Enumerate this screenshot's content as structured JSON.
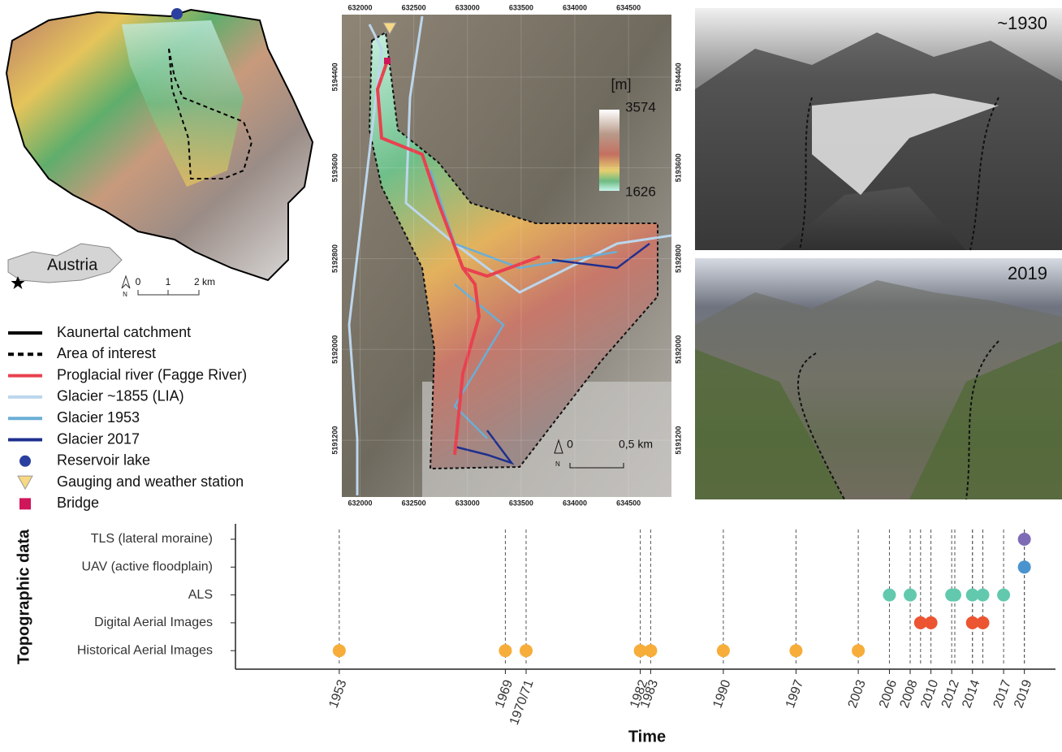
{
  "chart_data": {
    "type": "timeline",
    "y_label": "Topographic data",
    "x_label": "Time",
    "series": [
      {
        "name": "TLS (lateral moraine)",
        "color": "#7e6bb5",
        "x": [
          2019
        ]
      },
      {
        "name": "UAV (active floodplain)",
        "color": "#4a93cf",
        "x": [
          2019
        ]
      },
      {
        "name": "ALS",
        "color": "#62c9ae",
        "x": [
          2006,
          2008,
          2012,
          2012.3,
          2014,
          2015,
          2017
        ]
      },
      {
        "name": "Digital Aerial Images",
        "color": "#ec5432",
        "x": [
          2009,
          2010,
          2014,
          2015
        ]
      },
      {
        "name": "Historical Aerial Images",
        "color": "#f6ad3a",
        "x": [
          1953,
          1969,
          1971,
          1982,
          1983,
          1990,
          1997,
          2003
        ]
      }
    ],
    "xlim": [
      1943,
      2022
    ],
    "xticks": [
      1953,
      1969,
      {
        "value": 1971,
        "label": "1970/71"
      },
      1982,
      1983,
      1990,
      1997,
      2003,
      2006,
      2008,
      2010,
      2012,
      2014,
      2017,
      2019
    ]
  },
  "overview_map": {
    "inset_label": "Austria",
    "north": "N",
    "scale": [
      "0",
      "1",
      "2 km"
    ]
  },
  "legend": [
    {
      "label": "Kaunertal catchment",
      "symbol": "line",
      "color": "#000000"
    },
    {
      "label": "Area of interest",
      "symbol": "dash",
      "color": "#000000"
    },
    {
      "label": "Proglacial river (Fagge River)",
      "symbol": "line",
      "color": "#e8414f"
    },
    {
      "label": "Glacier ~1855 (LIA)",
      "symbol": "line",
      "color": "#bcd6ec"
    },
    {
      "label": "Glacier 1953",
      "symbol": "line",
      "color": "#6aaed6"
    },
    {
      "label": "Glacier 2017",
      "symbol": "line",
      "color": "#1f2f8f"
    },
    {
      "label": "Reservoir lake",
      "symbol": "circle",
      "color": "#2a3f9f"
    },
    {
      "label": "Gauging and weather station",
      "symbol": "triangle",
      "color": "#f7d883"
    },
    {
      "label": "Bridge",
      "symbol": "square",
      "color": "#d0155a"
    }
  ],
  "detail_map": {
    "xticks": [
      632000,
      632500,
      633000,
      633500,
      634000,
      634500
    ],
    "xlim": [
      631830,
      634900
    ],
    "yticks": [
      5194400,
      5193600,
      5192800,
      5192000,
      5191200
    ],
    "ylim": [
      5194950,
      5190700
    ],
    "colorbar": {
      "unit": "[m]",
      "max": 3574,
      "min": 1626
    },
    "north": "N",
    "scale": [
      "0",
      "0,5 km"
    ]
  },
  "photos": [
    {
      "label": "~1930"
    },
    {
      "label": "2019"
    }
  ]
}
